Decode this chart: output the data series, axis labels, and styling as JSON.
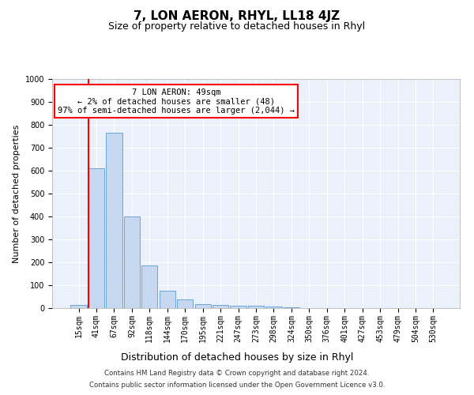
{
  "title": "7, LON AERON, RHYL, LL18 4JZ",
  "subtitle": "Size of property relative to detached houses in Rhyl",
  "xlabel": "Distribution of detached houses by size in Rhyl",
  "ylabel": "Number of detached properties",
  "categories": [
    "15sqm",
    "41sqm",
    "67sqm",
    "92sqm",
    "118sqm",
    "144sqm",
    "170sqm",
    "195sqm",
    "221sqm",
    "247sqm",
    "273sqm",
    "298sqm",
    "324sqm",
    "350sqm",
    "376sqm",
    "401sqm",
    "427sqm",
    "453sqm",
    "479sqm",
    "504sqm",
    "530sqm"
  ],
  "bar_heights": [
    15,
    610,
    765,
    400,
    185,
    75,
    37,
    18,
    13,
    10,
    11,
    7,
    4,
    0,
    0,
    0,
    0,
    0,
    0,
    0,
    0
  ],
  "bar_color": "#c5d8f0",
  "bar_edge_color": "#5b9bd5",
  "vline_x_index": 1,
  "vline_color": "#ff0000",
  "annotation_text": "7 LON AERON: 49sqm\n← 2% of detached houses are smaller (48)\n97% of semi-detached houses are larger (2,044) →",
  "annotation_box_color": "#ffffff",
  "annotation_box_edge": "#ff0000",
  "ylim": [
    0,
    1000
  ],
  "yticks": [
    0,
    100,
    200,
    300,
    400,
    500,
    600,
    700,
    800,
    900,
    1000
  ],
  "background_color": "#eaf1fb",
  "footer_line1": "Contains HM Land Registry data © Crown copyright and database right 2024.",
  "footer_line2": "Contains public sector information licensed under the Open Government Licence v3.0.",
  "title_fontsize": 11,
  "subtitle_fontsize": 9,
  "xlabel_fontsize": 9,
  "ylabel_fontsize": 8,
  "annotation_fontsize": 7.5,
  "tick_fontsize": 7
}
